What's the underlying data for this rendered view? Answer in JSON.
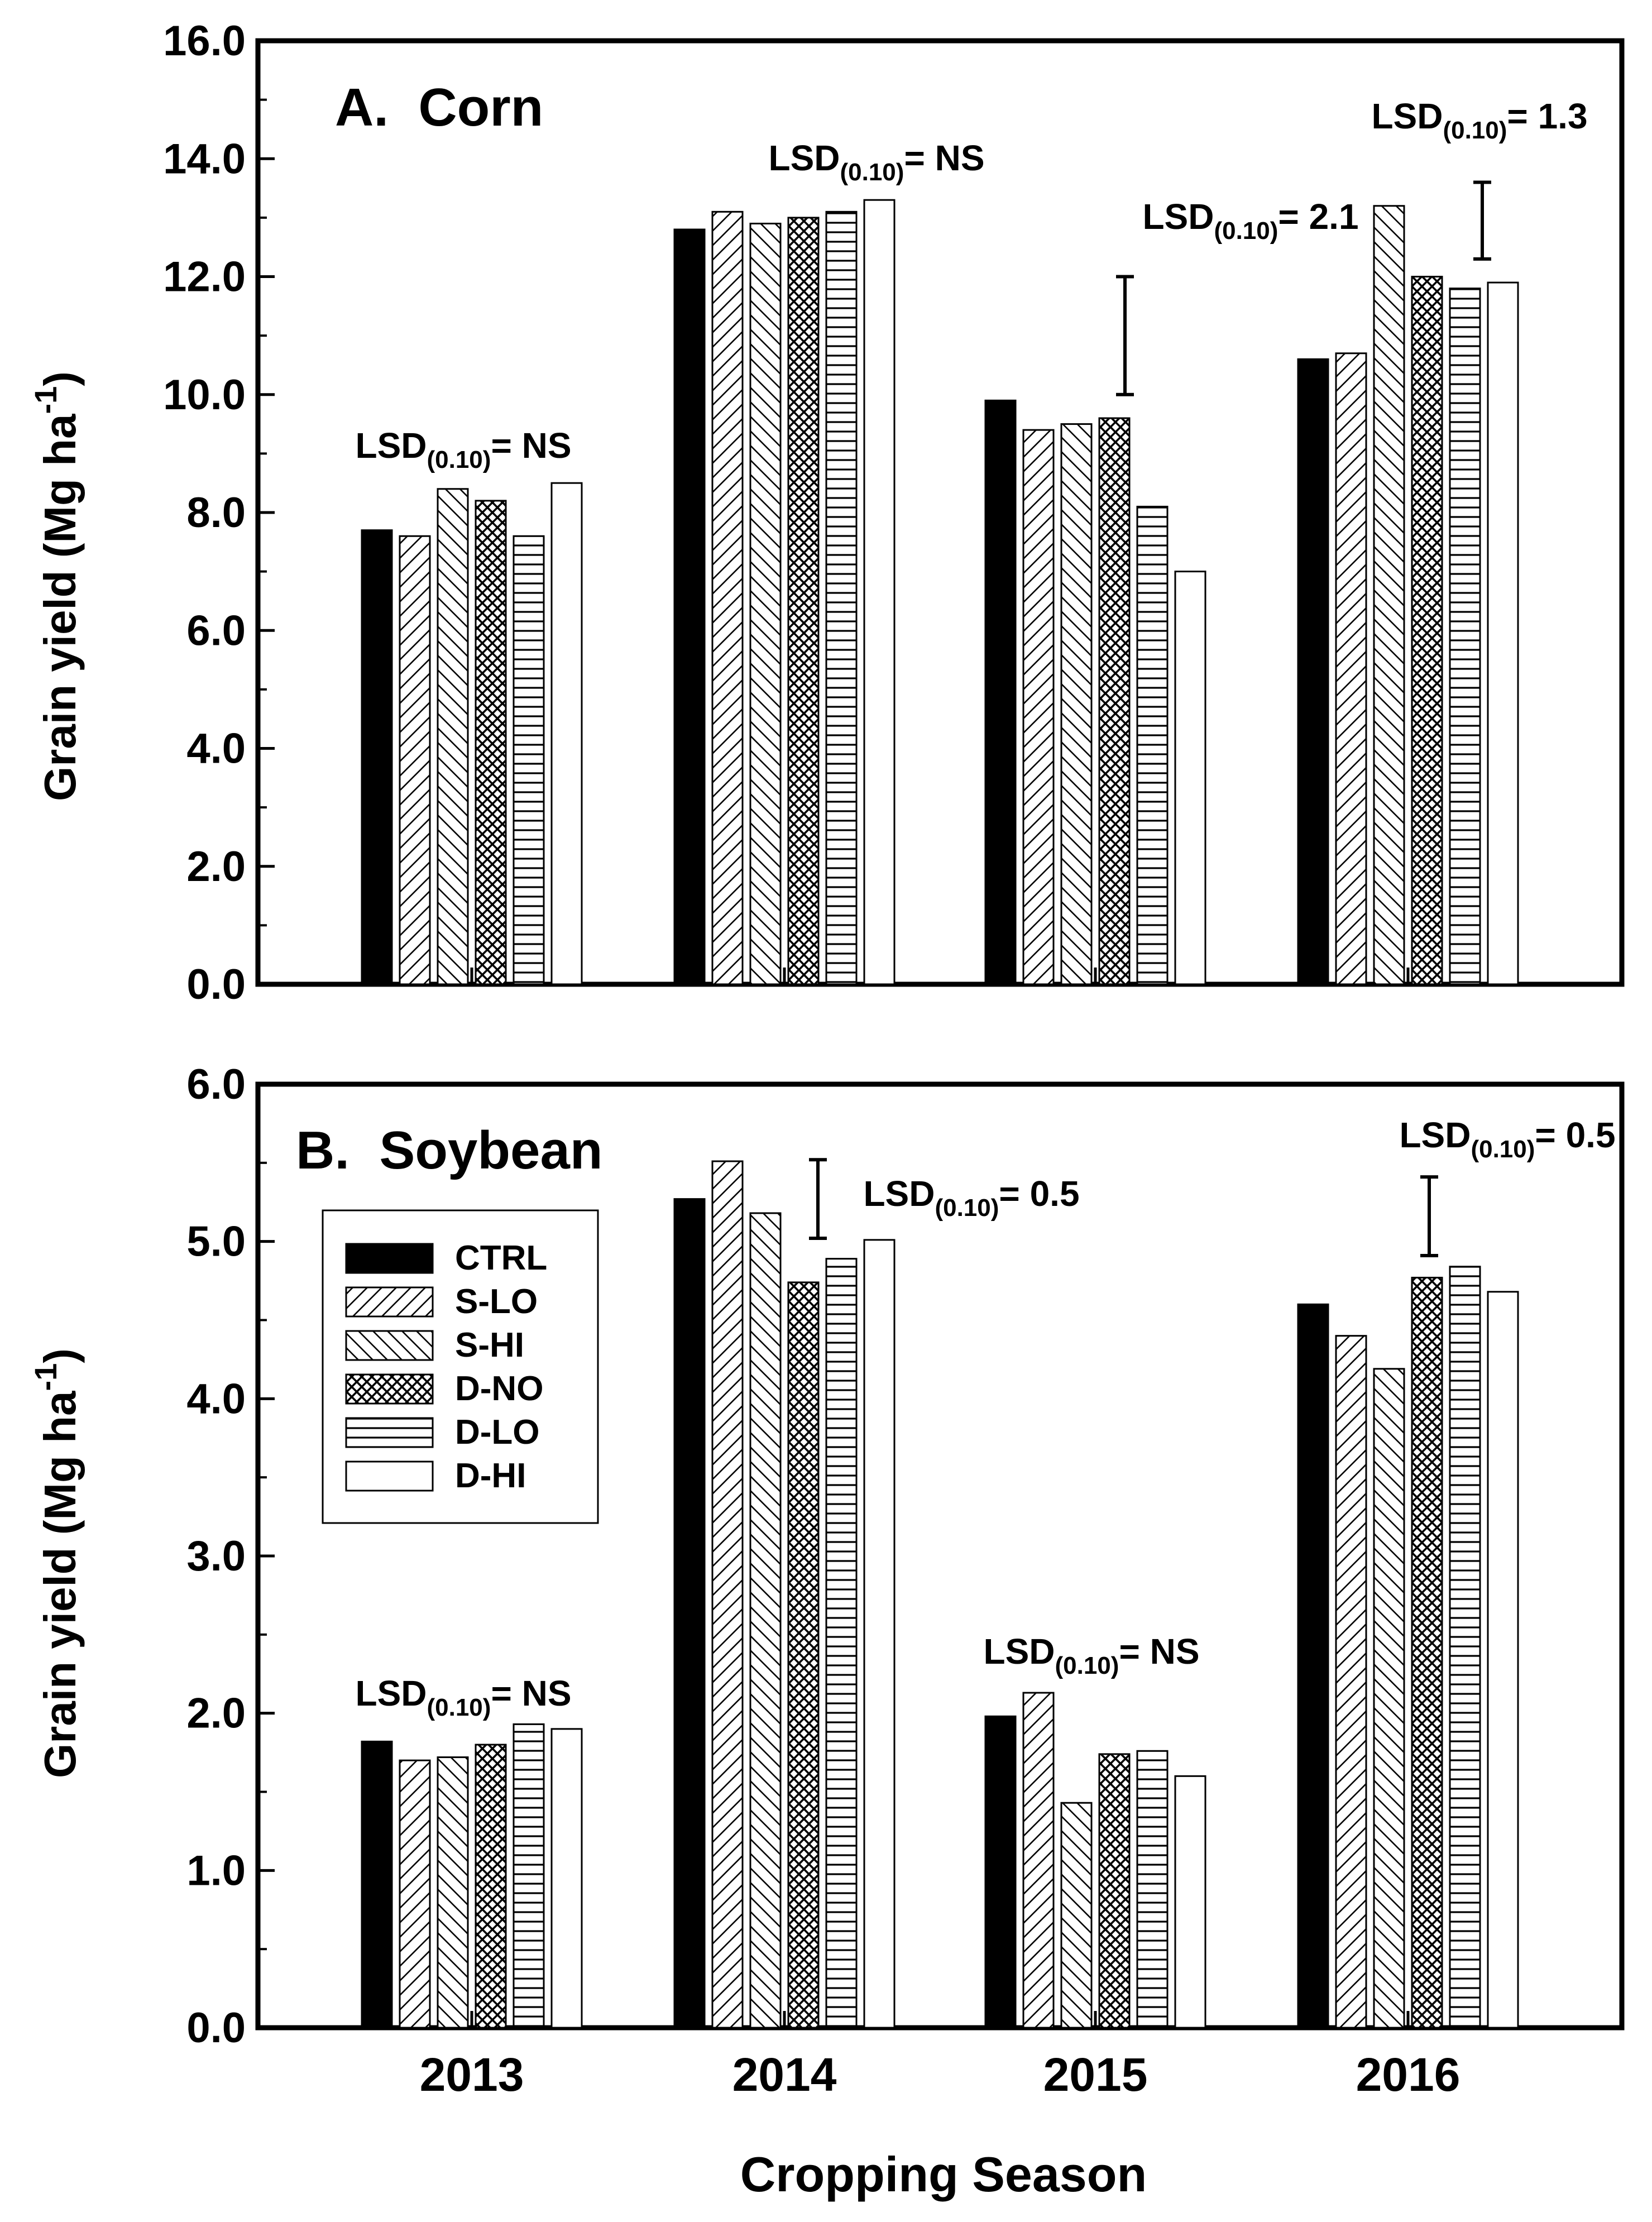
{
  "chart_data": [
    {
      "type": "bar",
      "title": "A.  Corn",
      "ylabel": "Grain yield (Mg ha",
      "ylabel_sup": "-1",
      "ylabel_close": ")",
      "ylim": [
        0,
        16
      ],
      "yticks": [
        "0.0",
        "2.0",
        "4.0",
        "6.0",
        "8.0",
        "10.0",
        "12.0",
        "14.0",
        "16.0"
      ],
      "categories": [
        "2013",
        "2014",
        "2015",
        "2016"
      ],
      "series": [
        {
          "name": "CTRL",
          "pattern": "solid",
          "values": [
            7.7,
            12.8,
            9.9,
            10.6
          ]
        },
        {
          "name": "S-LO",
          "pattern": "diag-fwd",
          "values": [
            7.6,
            13.1,
            9.4,
            10.7
          ]
        },
        {
          "name": "S-HI",
          "pattern": "diag-back",
          "values": [
            8.4,
            12.9,
            9.5,
            13.2
          ]
        },
        {
          "name": "D-NO",
          "pattern": "crosshatch",
          "values": [
            8.2,
            13.0,
            9.6,
            12.0
          ]
        },
        {
          "name": "D-LO",
          "pattern": "horiz",
          "values": [
            7.6,
            13.1,
            8.1,
            11.8
          ]
        },
        {
          "name": "D-HI",
          "pattern": "open",
          "values": [
            8.5,
            13.3,
            7.0,
            11.9
          ]
        }
      ],
      "lsd": [
        {
          "prefix": "LSD",
          "sub": "(0.10)",
          "text": "= NS"
        },
        {
          "prefix": "LSD",
          "sub": "(0.10)",
          "text": "= NS"
        },
        {
          "prefix": "LSD",
          "sub": "(0.10)",
          "text": "= 2.1",
          "bar": [
            10.0,
            12.0
          ]
        },
        {
          "prefix": "LSD",
          "sub": "(0.10)",
          "text": "= 1.3",
          "bar": [
            12.3,
            13.6
          ]
        }
      ]
    },
    {
      "type": "bar",
      "title": "B.  Soybean",
      "ylabel": "Grain yield (Mg ha",
      "ylabel_sup": "-1",
      "ylabel_close": ")",
      "ylim": [
        0,
        6
      ],
      "yticks": [
        "0.0",
        "1.0",
        "2.0",
        "3.0",
        "4.0",
        "5.0",
        "6.0"
      ],
      "xlabel": "Cropping Season",
      "categories": [
        "2013",
        "2014",
        "2015",
        "2016"
      ],
      "series": [
        {
          "name": "CTRL",
          "pattern": "solid",
          "values": [
            1.82,
            5.27,
            1.98,
            4.6
          ]
        },
        {
          "name": "S-LO",
          "pattern": "diag-fwd",
          "values": [
            1.7,
            5.51,
            2.13,
            4.4
          ]
        },
        {
          "name": "S-HI",
          "pattern": "diag-back",
          "values": [
            1.72,
            5.18,
            1.43,
            4.19
          ]
        },
        {
          "name": "D-NO",
          "pattern": "crosshatch",
          "values": [
            1.8,
            4.74,
            1.74,
            4.77
          ]
        },
        {
          "name": "D-LO",
          "pattern": "horiz",
          "values": [
            1.93,
            4.89,
            1.76,
            4.84
          ]
        },
        {
          "name": "D-HI",
          "pattern": "open",
          "values": [
            1.9,
            5.01,
            1.6,
            4.68
          ]
        }
      ],
      "lsd": [
        {
          "prefix": "LSD",
          "sub": "(0.10)",
          "text": "= NS"
        },
        {
          "prefix": "LSD",
          "sub": "(0.10)",
          "text": "= 0.5",
          "bar": [
            5.02,
            5.52
          ]
        },
        {
          "prefix": "LSD",
          "sub": "(0.10)",
          "text": "= NS"
        },
        {
          "prefix": "LSD",
          "sub": "(0.10)",
          "text": "= 0.5",
          "bar": [
            4.91,
            5.41
          ]
        }
      ],
      "legend": "upper-left"
    }
  ]
}
